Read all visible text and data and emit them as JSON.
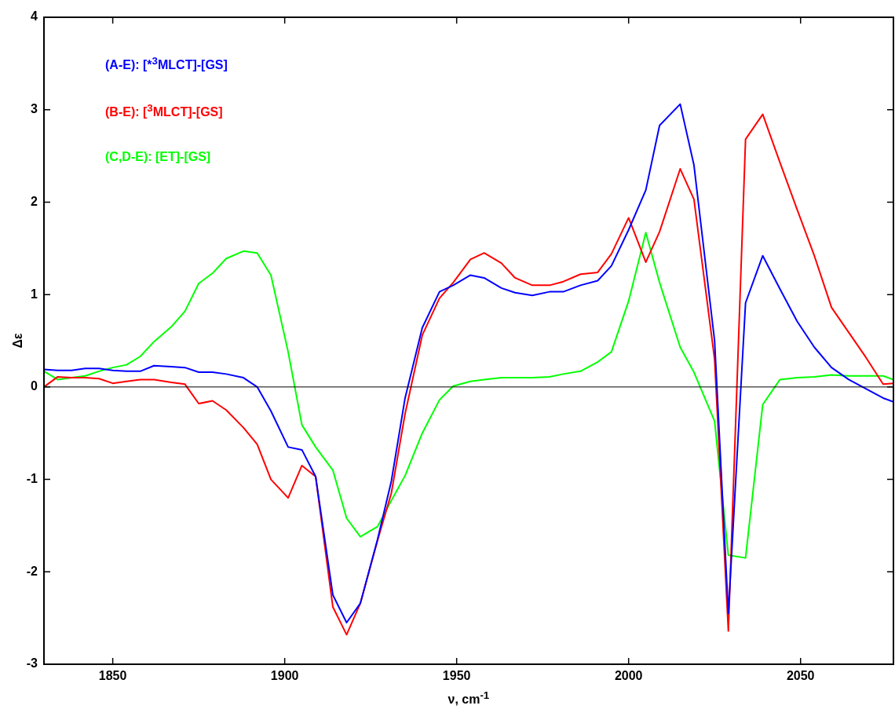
{
  "chart_data": {
    "type": "line",
    "xlabel": "ν, cm$^{-1}$",
    "ylabel": "Δε",
    "x": [
      1830,
      1834,
      1838,
      1842,
      1846,
      1850,
      1854,
      1858,
      1862,
      1867,
      1871,
      1875,
      1879,
      1883,
      1888,
      1892,
      1896,
      1901,
      1905,
      1909,
      1914,
      1918,
      1922,
      1927,
      1931,
      1935,
      1940,
      1945,
      1949,
      1954,
      1958,
      1963,
      1967,
      1972,
      1977,
      1981,
      1986,
      1991,
      1995,
      2000,
      2005,
      2009,
      2015,
      2019,
      2025,
      2029,
      2034,
      2039,
      2044,
      2049,
      2054,
      2059,
      2064,
      2069,
      2074,
      2077
    ],
    "series": [
      {
        "name": "(A-E): [*$^{3}$MLCT]-[GS]",
        "color": "#0000ff",
        "values": [
          0.19,
          0.18,
          0.18,
          0.2,
          0.2,
          0.18,
          0.17,
          0.17,
          0.23,
          0.22,
          0.21,
          0.16,
          0.16,
          0.14,
          0.1,
          0.0,
          -0.26,
          -0.65,
          -0.68,
          -0.97,
          -2.25,
          -2.55,
          -2.34,
          -1.65,
          -1.02,
          -0.12,
          0.64,
          1.03,
          1.1,
          1.21,
          1.18,
          1.07,
          1.02,
          0.99,
          1.03,
          1.03,
          1.1,
          1.15,
          1.31,
          1.7,
          2.13,
          2.83,
          3.06,
          2.4,
          0.5,
          -2.45,
          0.91,
          1.42,
          1.06,
          0.71,
          0.43,
          0.21,
          0.08,
          -0.02,
          -0.12,
          -0.16
        ]
      },
      {
        "name": "(B-E): [$^{3}$MLCT]-[GS]",
        "color": "#ff0000",
        "values": [
          0.0,
          0.11,
          0.1,
          0.1,
          0.09,
          0.04,
          0.06,
          0.08,
          0.08,
          0.05,
          0.03,
          -0.18,
          -0.15,
          -0.25,
          -0.44,
          -0.62,
          -1.0,
          -1.2,
          -0.85,
          -0.97,
          -2.38,
          -2.68,
          -2.34,
          -1.66,
          -1.15,
          -0.29,
          0.56,
          0.96,
          1.13,
          1.38,
          1.45,
          1.34,
          1.18,
          1.1,
          1.1,
          1.14,
          1.22,
          1.24,
          1.44,
          1.83,
          1.35,
          1.68,
          2.36,
          2.03,
          0.3,
          -2.64,
          2.68,
          2.95,
          2.43,
          1.92,
          1.42,
          0.86,
          0.59,
          0.32,
          0.03,
          0.04
        ]
      },
      {
        "name": "(C,D-E): [ET]-[GS]",
        "color": "#00ff00",
        "values": [
          0.17,
          0.08,
          0.1,
          0.12,
          0.17,
          0.21,
          0.24,
          0.33,
          0.49,
          0.65,
          0.82,
          1.12,
          1.23,
          1.39,
          1.47,
          1.45,
          1.21,
          0.38,
          -0.41,
          -0.65,
          -0.9,
          -1.42,
          -1.62,
          -1.51,
          -1.23,
          -0.96,
          -0.5,
          -0.14,
          0.01,
          0.06,
          0.08,
          0.1,
          0.1,
          0.1,
          0.11,
          0.14,
          0.17,
          0.27,
          0.38,
          0.93,
          1.67,
          1.13,
          0.43,
          0.16,
          -0.37,
          -1.82,
          -1.85,
          -0.19,
          0.08,
          0.1,
          0.11,
          0.13,
          0.12,
          0.12,
          0.12,
          0.08
        ]
      }
    ],
    "xlim": [
      1830,
      2077
    ],
    "xticks": [
      1850,
      1900,
      1950,
      2000,
      2050
    ],
    "ylim": [
      -3,
      4
    ],
    "yticks": [
      -3,
      -2,
      -1,
      0,
      1,
      2,
      3,
      4
    ],
    "ref_lines": [
      {
        "axis": "y",
        "value": 0,
        "color": "#000000"
      }
    ],
    "legend": "top left",
    "grid": false,
    "marker": "none",
    "line_style": "solid"
  }
}
